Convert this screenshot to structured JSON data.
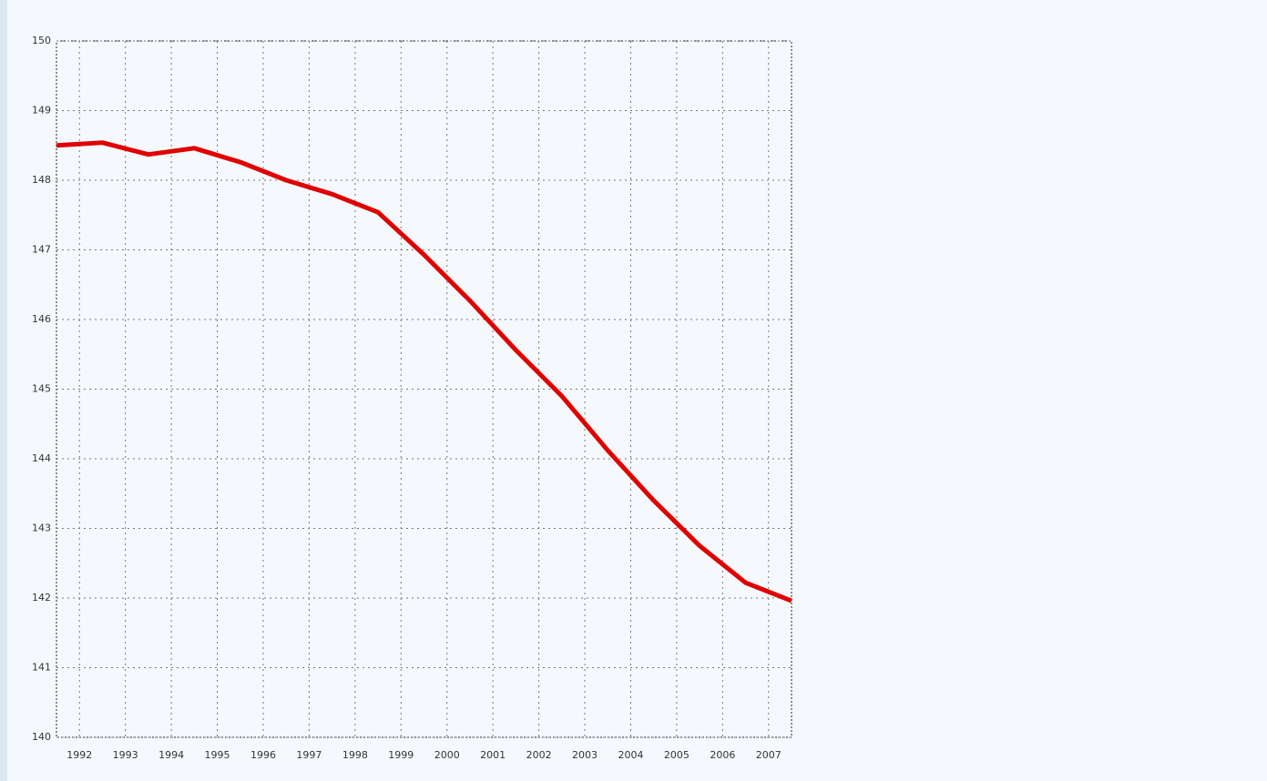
{
  "chart_data": {
    "type": "line",
    "x": [
      1991.5,
      1992.5,
      1993.5,
      1994.5,
      1995.5,
      1996.5,
      1997.5,
      1998.5,
      1999.5,
      2000.5,
      2001.5,
      2002.5,
      2003.5,
      2004.5,
      2005.5,
      2006.5,
      2007.5
    ],
    "series": [
      {
        "color": "#e00000",
        "values": [
          148.5,
          148.54,
          148.37,
          148.46,
          148.26,
          148.0,
          147.8,
          147.54,
          146.93,
          146.27,
          145.56,
          144.9,
          144.12,
          143.4,
          142.75,
          142.22,
          141.96
        ]
      }
    ],
    "xlim": [
      1991.5,
      2007.5
    ],
    "xticks": [
      1992,
      1993,
      1994,
      1995,
      1996,
      1997,
      1998,
      1999,
      2000,
      2001,
      2002,
      2003,
      2004,
      2005,
      2006,
      2007
    ],
    "ylim": [
      140,
      150
    ],
    "yticks": [
      140,
      141,
      142,
      143,
      144,
      145,
      146,
      147,
      148,
      149,
      150
    ],
    "grid": true
  }
}
